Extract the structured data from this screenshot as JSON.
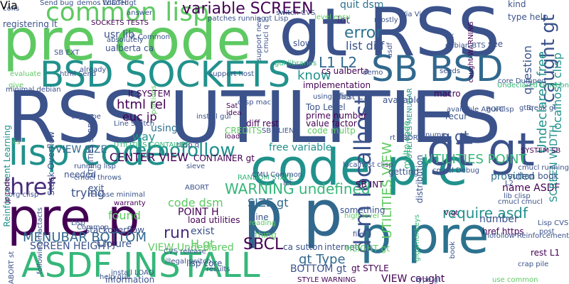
{
  "words": [
    {
      "text": "RSS UTILITIES",
      "color": "#3b528b"
    },
    {
      "text": "pre code",
      "color": "#5ec962"
    },
    {
      "text": "gt RSS",
      "color": "#3b528b"
    },
    {
      "text": "code pre",
      "color": "#21918c"
    },
    {
      "text": "pre p",
      "color": "#440154"
    },
    {
      "text": "p pre",
      "color": "#2c728e"
    },
    {
      "text": "p p",
      "color": "#31688e"
    },
    {
      "text": "ASDF INSTALL",
      "color": "#35b779"
    },
    {
      "text": "BSD SOCKETS",
      "color": "#21918c"
    },
    {
      "text": "SB BSD",
      "color": "#31688e"
    },
    {
      "text": "common lisp",
      "color": "#5ec962"
    },
    {
      "text": "lisp code",
      "color": "#21918c"
    },
    {
      "text": "gt gt",
      "color": "#3b528b"
    },
    {
      "text": "href",
      "color": "#472d7b"
    },
    {
      "text": "variable SCREEN",
      "color": "#440154"
    },
    {
      "text": "rel nofollow",
      "color": "#21918c"
    },
    {
      "text": "dsm localhost",
      "color": "#3b528b"
    },
    {
      "text": "WARNING undefined",
      "color": "#35b779"
    },
    {
      "text": "error",
      "color": "#2c728e"
    },
    {
      "text": "L1 L2",
      "color": "#31688e"
    },
    {
      "text": "list diff",
      "color": "#3b528b"
    },
    {
      "text": "quit dsm",
      "color": "#2c728e"
    },
    {
      "text": "lot",
      "color": "#472d7b"
    },
    {
      "text": "know",
      "color": "#21918c"
    },
    {
      "text": "require asdf",
      "color": "#21918c"
    },
    {
      "text": "MENUBAR BOTTOM",
      "color": "#31688e"
    },
    {
      "text": "SCREEN HEIGHT",
      "color": "#3b528b"
    },
    {
      "text": "SBCL",
      "color": "#440154"
    },
    {
      "text": "gt Type",
      "color": "#31688e"
    },
    {
      "text": "BOTTOM gt",
      "color": "#3b528b"
    },
    {
      "text": "UTILITIES POINT",
      "color": "#35b779"
    },
    {
      "text": "UTILITIES VIEW",
      "color": "#5ec962"
    },
    {
      "text": "CENTER VIEW",
      "color": "#440154"
    },
    {
      "text": "VIEW SIZE",
      "color": "#31688e"
    },
    {
      "text": "html rel",
      "color": "#440154"
    },
    {
      "text": "euc jp",
      "color": "#440154"
    },
    {
      "text": "using",
      "color": "#2c728e"
    },
    {
      "text": "way",
      "color": "#21918c"
    },
    {
      "text": "trying",
      "color": "#3b528b"
    },
    {
      "text": "found",
      "color": "#5ec962"
    },
    {
      "text": "run",
      "color": "#472d7b"
    },
    {
      "text": "exist",
      "color": "#3b528b"
    },
    {
      "text": "code dsm",
      "color": "#5ec962"
    },
    {
      "text": "POINT H",
      "color": "#440154"
    },
    {
      "text": "SIZE gt",
      "color": "#31688e"
    },
    {
      "text": "H gt",
      "color": "#5ec962"
    },
    {
      "text": "free variable",
      "color": "#21918c"
    },
    {
      "text": "q gt",
      "color": "#3b528b"
    },
    {
      "text": "provided",
      "color": "#2c728e"
    },
    {
      "text": "name ASDF",
      "color": "#440154"
    },
    {
      "text": "number",
      "color": "#3b528b"
    },
    {
      "text": "caught gt",
      "color": "#3b528b"
    },
    {
      "text": "question",
      "color": "#3b528b"
    },
    {
      "text": "Undeclared free",
      "color": "#21918c"
    },
    {
      "text": "localhost clisp",
      "color": "#21918c"
    },
    {
      "text": "SCREEN WIDTH",
      "color": "#21918c"
    },
    {
      "text": "implementation",
      "color": "#440154"
    },
    {
      "text": "cs ualberta",
      "color": "#440154"
    },
    {
      "text": "usr lib",
      "color": "#3b528b"
    },
    {
      "text": "ualberta ca",
      "color": "#3b528b"
    },
    {
      "text": "absolutely",
      "color": "#3b528b"
    },
    {
      "text": "registering lt",
      "color": "#3b528b"
    },
    {
      "text": "SOCKETS TESTS",
      "color": "#440154"
    },
    {
      "text": "answer",
      "color": "#3b528b"
    },
    {
      "text": "slow",
      "color": "#3b528b"
    },
    {
      "text": "mostly",
      "color": "#3b528b"
    },
    {
      "text": "see",
      "color": "#3b528b"
    },
    {
      "text": "fix",
      "color": "#3b528b"
    },
    {
      "text": "kind",
      "color": "#3b528b"
    },
    {
      "text": "type help",
      "color": "#3b528b"
    },
    {
      "text": "first L1",
      "color": "#3b528b"
    },
    {
      "text": "macro",
      "color": "#440154"
    },
    {
      "text": "Top Level",
      "color": "#3b528b"
    },
    {
      "text": "prime number",
      "color": "#440154"
    },
    {
      "text": "value factor",
      "color": "#440154"
    },
    {
      "text": "code multp",
      "color": "#5ec962"
    },
    {
      "text": "diff rest",
      "color": "#440154"
    },
    {
      "text": "Sat",
      "color": "#440154"
    },
    {
      "text": "idea",
      "color": "#440154"
    },
    {
      "text": "lt SYSTEM",
      "color": "#440154"
    },
    {
      "text": "CONTAINER gt",
      "color": "#440154"
    },
    {
      "text": "load utilities",
      "color": "#440154"
    },
    {
      "text": "warranty",
      "color": "#440154"
    },
    {
      "text": "stackoverflow",
      "color": "#3b528b"
    },
    {
      "text": "Clojure",
      "color": "#3b528b"
    },
    {
      "text": "install LOAD",
      "color": "#3b528b"
    },
    {
      "text": "information",
      "color": "#3b528b"
    },
    {
      "text": "VIEW Undeclared",
      "color": "#5ec962"
    },
    {
      "text": "lisp core",
      "color": "#3b528b"
    },
    {
      "text": "ca sutton",
      "color": "#3b528b"
    },
    {
      "text": "internet",
      "color": "#3b528b"
    },
    {
      "text": "STYLE WARNING",
      "color": "#440154"
    },
    {
      "text": "VIEW caught",
      "color": "#440154"
    },
    {
      "text": "gt STYLE",
      "color": "#440154"
    },
    {
      "text": "use common",
      "color": "#5ec962"
    },
    {
      "text": "rest L1",
      "color": "#440154"
    },
    {
      "text": "post",
      "color": "#3b528b"
    },
    {
      "text": "book",
      "color": "#3b528b"
    },
    {
      "text": "sutton book",
      "color": "#3b528b"
    },
    {
      "text": "SYSTEM SB",
      "color": "#440154"
    },
    {
      "text": "href https",
      "color": "#440154"
    },
    {
      "text": "nofollow Reinforcement",
      "color": "#3b528b"
    },
    {
      "text": "V gt",
      "color": "#440154"
    },
    {
      "text": "SB INT",
      "color": "#440154"
    },
    {
      "text": "L2",
      "color": "#3b528b"
    },
    {
      "text": "getting",
      "color": "#3b528b"
    },
    {
      "text": "file",
      "color": "#3b528b"
    },
    {
      "text": "something",
      "color": "#3b528b"
    },
    {
      "text": "high level",
      "color": "#5ec962"
    },
    {
      "text": "HEIGHT gt",
      "color": "#5ec962"
    },
    {
      "text": "thing",
      "color": "#5ec962"
    },
    {
      "text": "line",
      "color": "#3b528b"
    },
    {
      "text": "reading",
      "color": "#5ec962"
    },
    {
      "text": "let",
      "color": "#3b528b"
    },
    {
      "text": "RANDOM STATE",
      "color": "#35b779"
    },
    {
      "text": "exit",
      "color": "#3b528b"
    },
    {
      "text": "needed",
      "color": "#3b528b"
    },
    {
      "text": "available",
      "color": "#3b528b"
    },
    {
      "text": "seeds",
      "color": "#3b528b"
    },
    {
      "text": "recur",
      "color": "#3b528b"
    },
    {
      "text": "nums",
      "color": "#3b528b"
    },
    {
      "text": "already",
      "color": "#3b528b"
    },
    {
      "text": "SB EXT",
      "color": "#3b528b"
    },
    {
      "text": "level easy",
      "color": "#5ec962"
    },
    {
      "text": "evaluate",
      "color": "#5ec962"
    },
    {
      "text": "give",
      "color": "#5ec962"
    },
    {
      "text": "CREDITS",
      "color": "#5ec962"
    },
    {
      "text": "load",
      "color": "#440154"
    },
    {
      "text": "results",
      "color": "#3b528b"
    },
    {
      "text": "cs",
      "color": "#5ec962"
    },
    {
      "text": "UTILITIES MENUBAR",
      "color": "#21918c"
    },
    {
      "text": "UTILITIES CONTAINER",
      "color": "#35b779"
    },
    {
      "text": "Reinforcement Learning",
      "color": "#21918c"
    },
    {
      "text": "Stack Overflow",
      "color": "#3b528b"
    },
    {
      "text": "jp code",
      "color": "#440154"
    },
    {
      "text": "UTILITIES SCREEN",
      "color": "#3b528b"
    },
    {
      "text": "following mactacts",
      "color": "#3b528b"
    },
    {
      "text": "support new",
      "color": "#3b528b"
    },
    {
      "text": "Send bug",
      "color": "#3b528b"
    },
    {
      "text": "demos Loaded",
      "color": "#3b528b"
    },
    {
      "text": "WIDTH gt",
      "color": "#3b528b"
    },
    {
      "text": "cons",
      "color": "#3b528b"
    },
    {
      "text": "demo",
      "color": "#3b528b"
    },
    {
      "text": "gui libraries",
      "color": "#35b779"
    },
    {
      "text": "Undeclared function",
      "color": "#35b779"
    },
    {
      "text": "caught WARNING",
      "color": "#440154"
    },
    {
      "text": "distribution",
      "color": "#3b528b"
    },
    {
      "text": "gigamonkeys",
      "color": "#35b779"
    },
    {
      "text": "portions",
      "color": "#5ec962"
    },
    {
      "text": "multp code",
      "color": "#35b779"
    },
    {
      "text": "clisp q",
      "color": "#3b528b"
    },
    {
      "text": "asdf",
      "color": "#3b528b"
    },
    {
      "text": "minimal debian",
      "color": "#3b528b"
    },
    {
      "text": "org type",
      "color": "#3b528b"
    },
    {
      "text": "lt Common",
      "color": "#3b528b"
    },
    {
      "text": "patches running",
      "color": "#3b528b"
    },
    {
      "text": "localhost clisp",
      "color": "#3b528b"
    },
    {
      "text": "lib clisp",
      "color": "#3b528b"
    },
    {
      "text": "Lisp CVS",
      "color": "#3b528b"
    },
    {
      "text": "core Dumped",
      "color": "#3b528b"
    },
    {
      "text": "debian BTS",
      "color": "#3b528b"
    },
    {
      "text": "release minimal",
      "color": "#3b528b"
    },
    {
      "text": "org clisp",
      "color": "#3b528b"
    },
    {
      "text": "support host",
      "color": "#3b528b"
    },
    {
      "text": "help quit",
      "color": "#3b528b"
    },
    {
      "text": "illegal switch",
      "color": "#3b528b"
    },
    {
      "text": "sieve",
      "color": "#3b528b"
    },
    {
      "text": "cmucl q",
      "color": "#3b528b"
    },
    {
      "text": "Line Switch",
      "color": "#3b528b"
    },
    {
      "text": "crap pile",
      "color": "#3b528b"
    },
    {
      "text": "gt q",
      "color": "#3b528b"
    },
    {
      "text": "install gui",
      "color": "#3b528b"
    },
    {
      "text": "CVS release",
      "color": "#3b528b"
    },
    {
      "text": "html Send",
      "color": "#3b528b"
    },
    {
      "text": "SB ALIEN",
      "color": "#3b528b"
    },
    {
      "text": "CMU Common",
      "color": "#3b528b"
    },
    {
      "text": "type gt",
      "color": "#3b528b"
    },
    {
      "text": "gt Lisp",
      "color": "#3b528b"
    },
    {
      "text": "available ABORT",
      "color": "#3b528b"
    },
    {
      "text": "switch CVS",
      "color": "#3b528b"
    },
    {
      "text": "Via Via",
      "color": "#3b528b"
    },
    {
      "text": "gui Lisp",
      "color": "#3b528b"
    },
    {
      "text": "cmucl Debug",
      "color": "#3b528b"
    },
    {
      "text": "clisp mac",
      "color": "#3b528b"
    },
    {
      "text": "Break gt",
      "color": "#3b528b"
    },
    {
      "text": "ABORT  st",
      "color": "#3b528b"
    },
    {
      "text": "rt ABORT",
      "color": "#3b528b"
    },
    {
      "text": "running lisp",
      "color": "#3b528b"
    },
    {
      "text": "using clisp",
      "color": "#3b528b"
    },
    {
      "text": "Common",
      "color": "#3b528b"
    },
    {
      "text": "cmucl cmucl",
      "color": "#3b528b"
    },
    {
      "text": "cmucl throws",
      "color": "#3b528b"
    },
    {
      "text": "cmucl running",
      "color": "#3b528b"
    },
    {
      "text": "ABORT",
      "color": "#3b528b"
    },
    {
      "text": "Lisp",
      "color": "#3b528b"
    },
    {
      "text": "Via",
      "color": "#3b528b"
    }
  ]
}
